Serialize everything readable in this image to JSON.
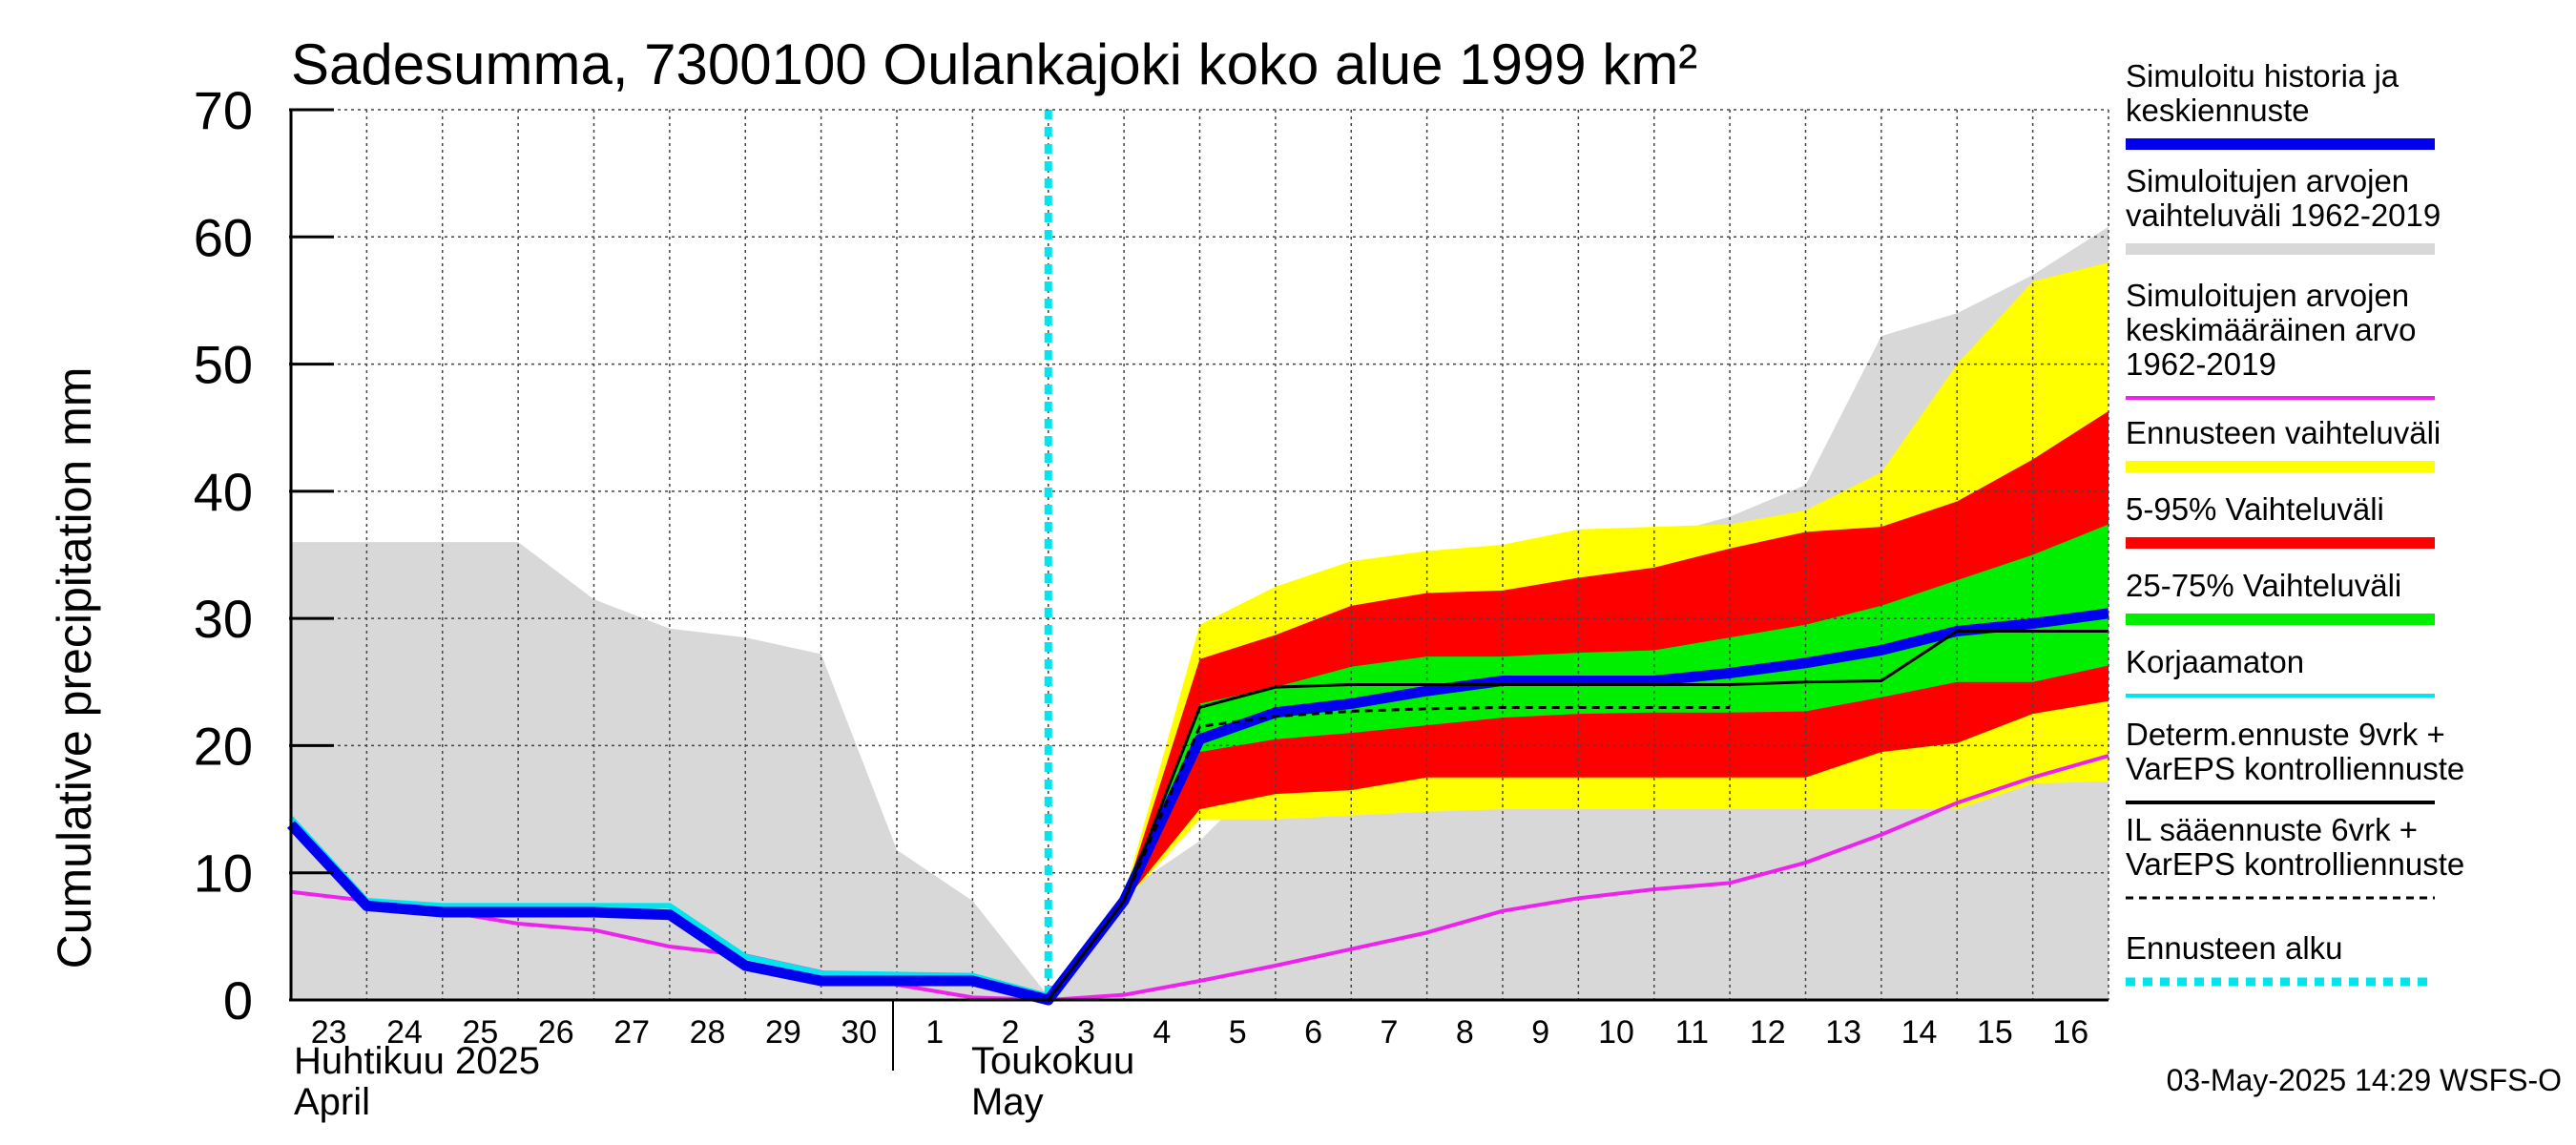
{
  "chart_data": {
    "type": "area",
    "title": "Sadesumma, 7300100 Oulankajoki koko alue 1999 km²",
    "ylabel": "Cumulative precipitation   mm",
    "ylim": [
      0,
      70
    ],
    "yticks": [
      0,
      10,
      20,
      30,
      40,
      50,
      60,
      70
    ],
    "x_day_index_range": [
      0,
      24
    ],
    "x_tick_labels": [
      "23",
      "24",
      "25",
      "26",
      "27",
      "28",
      "29",
      "30",
      "1",
      "2",
      "3",
      "4",
      "5",
      "6",
      "7",
      "8",
      "9",
      "10",
      "11",
      "12",
      "13",
      "14",
      "15",
      "16"
    ],
    "month_labels": {
      "april_fi": "Huhtikuu  2025",
      "april_en": "April",
      "may_fi": "Toukokuu",
      "may_en": "May"
    },
    "forecast_start_day_index": 10,
    "series": [
      {
        "name": "Simuloitujen arvojen vaihteluväli 1962-2019",
        "style": "band",
        "color": "#d8d8d8",
        "x": [
          0,
          1,
          2,
          3,
          4,
          5,
          6,
          7,
          8,
          9,
          10,
          11,
          12,
          13,
          14,
          15,
          16,
          17,
          18,
          19,
          20,
          21,
          22,
          23,
          24
        ],
        "lower": [
          0,
          0,
          0,
          0,
          0,
          0,
          0,
          0,
          0,
          0,
          0,
          0,
          0,
          0,
          0,
          0,
          0,
          0,
          0,
          0,
          0,
          0,
          0,
          0,
          0
        ],
        "upper": [
          36,
          36,
          36,
          36,
          31.5,
          29.2,
          28.5,
          27.2,
          11.8,
          7.8,
          0.3,
          8.5,
          12.5,
          18.5,
          23.5,
          26.5,
          28.2,
          30,
          36.4,
          38,
          40.5,
          52.2,
          54,
          57,
          60.8
        ]
      },
      {
        "name": "Ennusteen vaihteluväli",
        "style": "band",
        "color": "#ffff00",
        "x": [
          10,
          11,
          12,
          13,
          14,
          15,
          16,
          17,
          18,
          19,
          20,
          21,
          22,
          23,
          24
        ],
        "lower": [
          0,
          7.7,
          14.2,
          14.2,
          14.5,
          14.8,
          15,
          15,
          15,
          15,
          15,
          15,
          15,
          17,
          17.2
        ],
        "upper": [
          0,
          8.2,
          29.5,
          32.5,
          34.5,
          35.3,
          35.8,
          37,
          37.2,
          37.4,
          38.5,
          41.5,
          50,
          56.5,
          58
        ]
      },
      {
        "name": "5-95% Vaihteluväli",
        "style": "band",
        "color": "#ff0000",
        "x": [
          10,
          11,
          12,
          13,
          14,
          15,
          16,
          17,
          18,
          19,
          20,
          21,
          22,
          23,
          24
        ],
        "lower": [
          0,
          7.7,
          15,
          16.2,
          16.5,
          17.5,
          17.5,
          17.5,
          17.5,
          17.5,
          17.5,
          19.5,
          20.2,
          22.5,
          23.5
        ],
        "upper": [
          0,
          8,
          26.8,
          28.7,
          31,
          32,
          32.2,
          33.2,
          34,
          35.5,
          36.8,
          37.2,
          39.2,
          42.5,
          46.3
        ]
      },
      {
        "name": "25-75% Vaihteluväli",
        "style": "band",
        "color": "#00ee00",
        "x": [
          10,
          11,
          12,
          13,
          14,
          15,
          16,
          17,
          18,
          19,
          20,
          21,
          22,
          23,
          24
        ],
        "lower": [
          0,
          7.7,
          19.5,
          20.5,
          21,
          21.6,
          22.2,
          22.5,
          22.6,
          22.6,
          22.7,
          23.8,
          25,
          25,
          26.3
        ],
        "upper": [
          0,
          7.9,
          23.3,
          24.6,
          26.2,
          27,
          27,
          27.3,
          27.5,
          28.5,
          29.5,
          31,
          33,
          35,
          37.4
        ]
      },
      {
        "name": "Simuloitujen arvojen keskimääräinen arvo 1962-2019",
        "style": "line",
        "color": "#ee22ee",
        "x": [
          0,
          1,
          2,
          3,
          4,
          5,
          6,
          7,
          8,
          9,
          10,
          11,
          12,
          13,
          14,
          15,
          16,
          17,
          18,
          19,
          20,
          21,
          22,
          23,
          24
        ],
        "y": [
          8.5,
          7.8,
          7,
          6,
          5.5,
          4.2,
          3.5,
          2.2,
          1.2,
          0.2,
          0,
          0.4,
          1.5,
          2.7,
          4,
          5.3,
          7,
          8,
          8.7,
          9.2,
          10.8,
          13,
          15.5,
          17.5,
          19.2
        ]
      },
      {
        "name": "Korjaamaton",
        "style": "line",
        "color": "#00e5ee",
        "x": [
          0,
          1,
          2,
          3,
          4,
          5,
          6,
          7,
          8,
          9,
          10
        ],
        "y": [
          14.3,
          7.8,
          7.4,
          7.4,
          7.4,
          7.4,
          3.4,
          2.1,
          2.0,
          1.9,
          0.3
        ]
      },
      {
        "name": "Simuloitu historia ja keskiennuste",
        "style": "line",
        "color": "#0000ee",
        "x": [
          0,
          1,
          2,
          3,
          4,
          5,
          6,
          7,
          8,
          9,
          10,
          11,
          12,
          13,
          14,
          15,
          16,
          17,
          18,
          19,
          20,
          21,
          22,
          23,
          24
        ],
        "y": [
          13.8,
          7.4,
          6.9,
          6.9,
          6.9,
          6.7,
          2.7,
          1.5,
          1.5,
          1.5,
          0,
          7.8,
          20.5,
          22.6,
          23.3,
          24.3,
          25.1,
          25.1,
          25.1,
          25.7,
          26.5,
          27.5,
          29,
          29.6,
          30.4
        ]
      },
      {
        "name": "Determ.ennuste 9vrk + VarEPS kontrolliennuste",
        "style": "line",
        "color": "#000000",
        "x": [
          10,
          11,
          12,
          13,
          14,
          15,
          16,
          17,
          18,
          19,
          20,
          21,
          22,
          23,
          24
        ],
        "y": [
          0,
          7.8,
          23,
          24.6,
          24.8,
          24.8,
          24.8,
          24.8,
          24.8,
          24.8,
          25,
          25.1,
          29,
          29,
          29
        ]
      },
      {
        "name": "IL sääennuste 6vrk + VarEPS kontrolliennuste",
        "style": "dashed",
        "color": "#000000",
        "x": [
          10,
          11,
          12,
          13,
          14,
          15,
          16,
          17,
          18,
          19
        ],
        "y": [
          0,
          7.8,
          21.5,
          22.3,
          22.7,
          22.9,
          23,
          23,
          23,
          23
        ]
      }
    ],
    "legend": [
      {
        "label": "Simuloitu historia ja\nkeskiennuste",
        "color": "#0000ee",
        "kind": "thick"
      },
      {
        "label": "Simuloitujen arvojen\nvaihteluväli 1962-2019",
        "color": "#d8d8d8",
        "kind": "thick"
      },
      {
        "label": "Simuloitujen arvojen\nkeskimääräinen arvo\n   1962-2019",
        "color": "#ee22ee",
        "kind": "thin"
      },
      {
        "label": "Ennusteen vaihteluväli",
        "color": "#ffff00",
        "kind": "thick"
      },
      {
        "label": "5-95% Vaihteluväli",
        "color": "#ff0000",
        "kind": "thick"
      },
      {
        "label": "25-75% Vaihteluväli",
        "color": "#00ee00",
        "kind": "thick"
      },
      {
        "label": "Korjaamaton",
        "color": "#00e5ee",
        "kind": "thin"
      },
      {
        "label": "Determ.ennuste 9vrk +\nVarEPS kontrolliennuste",
        "color": "#000000",
        "kind": "thin"
      },
      {
        "label": "IL sääennuste 6vrk  +\n  VarEPS kontrolliennuste",
        "color": "#000000",
        "kind": "dashed"
      },
      {
        "label": "Ennusteen alku",
        "color": "#00e5ee",
        "kind": "dotted"
      }
    ],
    "timestamp": "03-May-2025 14:29 WSFS-O"
  }
}
